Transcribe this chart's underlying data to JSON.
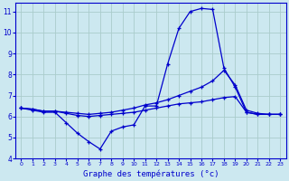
{
  "background_color": "#cce8f0",
  "grid_color": "#aacccc",
  "line_color": "#0000cc",
  "xlabel": "Graphe des températures (°c)",
  "xlim": [
    -0.5,
    23.5
  ],
  "ylim": [
    4,
    11.4
  ],
  "yticks": [
    4,
    5,
    6,
    7,
    8,
    9,
    10,
    11
  ],
  "xticks": [
    0,
    1,
    2,
    3,
    4,
    5,
    6,
    7,
    8,
    9,
    10,
    11,
    12,
    13,
    14,
    15,
    16,
    17,
    18,
    19,
    20,
    21,
    22,
    23
  ],
  "line1_x": [
    0,
    1,
    2,
    3,
    4,
    5,
    6,
    7,
    8,
    9,
    10,
    11,
    12,
    13,
    14,
    15,
    16,
    17,
    18,
    19,
    20,
    21,
    22,
    23
  ],
  "line1_y": [
    6.4,
    6.3,
    6.2,
    6.2,
    5.7,
    5.2,
    4.8,
    4.45,
    5.3,
    5.5,
    5.6,
    6.5,
    6.5,
    8.5,
    10.2,
    11.0,
    11.15,
    11.1,
    8.3,
    7.4,
    6.2,
    6.1,
    6.1,
    6.1
  ],
  "line2_x": [
    0,
    1,
    2,
    3,
    4,
    5,
    6,
    7,
    8,
    9,
    10,
    11,
    12,
    13,
    14,
    15,
    16,
    17,
    18,
    19,
    20,
    21,
    22,
    23
  ],
  "line2_y": [
    6.4,
    6.35,
    6.25,
    6.25,
    6.2,
    6.15,
    6.1,
    6.15,
    6.2,
    6.3,
    6.4,
    6.55,
    6.65,
    6.8,
    7.0,
    7.2,
    7.4,
    7.7,
    8.2,
    7.5,
    6.3,
    6.15,
    6.1,
    6.1
  ],
  "line3_x": [
    0,
    1,
    2,
    3,
    4,
    5,
    6,
    7,
    8,
    9,
    10,
    11,
    12,
    13,
    14,
    15,
    16,
    17,
    18,
    19,
    20,
    21,
    22,
    23
  ],
  "line3_y": [
    6.4,
    6.35,
    6.25,
    6.25,
    6.15,
    6.05,
    6.0,
    6.05,
    6.1,
    6.15,
    6.2,
    6.3,
    6.4,
    6.5,
    6.6,
    6.65,
    6.7,
    6.8,
    6.9,
    6.95,
    6.2,
    6.1,
    6.1,
    6.1
  ]
}
